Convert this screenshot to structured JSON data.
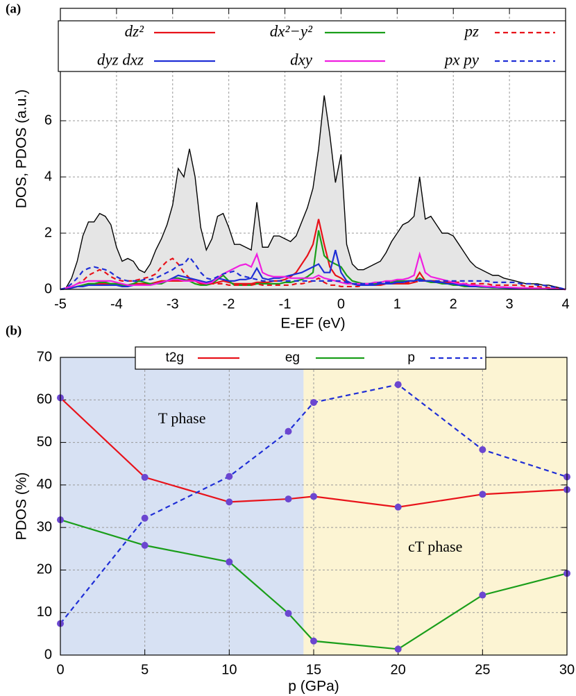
{
  "chart_data": [
    {
      "type": "line",
      "panel_label": "(a)",
      "xlabel": "E-EF (eV)",
      "ylabel": "DOS, PDOS (a.u.)",
      "xlim": [
        -5,
        4
      ],
      "xticks": [
        -5,
        -4,
        -3,
        -2,
        -1,
        0,
        1,
        2,
        3,
        4
      ],
      "ylim": [
        0,
        10
      ],
      "yticks": [
        0,
        2,
        4,
        6
      ],
      "grid": true,
      "x": [
        -5,
        -4.9,
        -4.8,
        -4.7,
        -4.6,
        -4.5,
        -4.4,
        -4.3,
        -4.2,
        -4.1,
        -4,
        -3.9,
        -3.8,
        -3.7,
        -3.6,
        -3.5,
        -3.4,
        -3.3,
        -3.2,
        -3.1,
        -3,
        -2.9,
        -2.8,
        -2.7,
        -2.6,
        -2.5,
        -2.4,
        -2.3,
        -2.2,
        -2.1,
        -2,
        -1.9,
        -1.8,
        -1.7,
        -1.6,
        -1.5,
        -1.4,
        -1.3,
        -1.2,
        -1.1,
        -1,
        -0.9,
        -0.8,
        -0.7,
        -0.6,
        -0.5,
        -0.4,
        -0.3,
        -0.2,
        -0.1,
        0,
        0.1,
        0.2,
        0.3,
        0.4,
        0.5,
        0.6,
        0.7,
        0.8,
        0.9,
        1,
        1.1,
        1.2,
        1.3,
        1.4,
        1.5,
        1.6,
        1.7,
        1.8,
        1.9,
        2,
        2.1,
        2.2,
        2.3,
        2.4,
        2.5,
        2.6,
        2.7,
        2.8,
        2.9,
        3,
        3.1,
        3.2,
        3.3,
        3.4,
        3.5,
        3.6,
        3.7,
        3.8,
        3.9,
        4
      ],
      "total": {
        "color": "#000000",
        "fill": "#e5e5e5",
        "values": [
          0,
          0.05,
          0.4,
          1.0,
          1.9,
          2.4,
          2.4,
          2.7,
          2.6,
          2.3,
          1.5,
          1.0,
          1.1,
          1.0,
          0.7,
          0.6,
          0.9,
          1.4,
          1.8,
          2.3,
          3.0,
          4.3,
          4.0,
          5.0,
          4.0,
          2.2,
          1.4,
          1.8,
          2.6,
          2.7,
          2.2,
          1.6,
          1.6,
          1.5,
          1.4,
          3.1,
          1.5,
          1.5,
          1.9,
          1.9,
          1.8,
          1.7,
          1.9,
          2.4,
          2.9,
          3.6,
          5.0,
          6.9,
          5.5,
          3.8,
          4.8,
          1.6,
          0.9,
          0.7,
          0.7,
          0.8,
          0.9,
          1.0,
          1.3,
          1.7,
          2.0,
          2.3,
          2.4,
          2.6,
          4.0,
          2.5,
          2.6,
          2.3,
          2.0,
          2.0,
          1.9,
          1.6,
          1.3,
          1.0,
          0.8,
          0.7,
          0.6,
          0.5,
          0.5,
          0.4,
          0.35,
          0.3,
          0.25,
          0.2,
          0.2,
          0.2,
          0.15,
          0.15,
          0.1,
          0.05,
          0
        ]
      },
      "series": [
        {
          "name": "dz²",
          "color": "#e8121a",
          "style": "solid",
          "values": [
            0,
            0.02,
            0.05,
            0.1,
            0.15,
            0.2,
            0.2,
            0.2,
            0.2,
            0.2,
            0.2,
            0.15,
            0.15,
            0.2,
            0.2,
            0.2,
            0.2,
            0.25,
            0.3,
            0.3,
            0.3,
            0.3,
            0.3,
            0.35,
            0.3,
            0.2,
            0.2,
            0.2,
            0.25,
            0.3,
            0.25,
            0.2,
            0.2,
            0.2,
            0.2,
            0.25,
            0.25,
            0.25,
            0.3,
            0.3,
            0.35,
            0.45,
            0.6,
            0.9,
            1.2,
            1.6,
            2.5,
            1.6,
            0.8,
            0.5,
            0.4,
            0.25,
            0.2,
            0.15,
            0.15,
            0.15,
            0.15,
            0.15,
            0.2,
            0.2,
            0.2,
            0.2,
            0.2,
            0.25,
            0.6,
            0.3,
            0.3,
            0.3,
            0.25,
            0.25,
            0.2,
            0.2,
            0.15,
            0.15,
            0.1,
            0.1,
            0.1,
            0.1,
            0.08,
            0.08,
            0.06,
            0.05,
            0.05,
            0.04,
            0.04,
            0.03,
            0.03,
            0.02,
            0.02,
            0.01,
            0
          ]
        },
        {
          "name": "dx²−y²",
          "color": "#1a9e1a",
          "style": "solid",
          "values": [
            0,
            0.02,
            0.05,
            0.1,
            0.15,
            0.2,
            0.2,
            0.25,
            0.25,
            0.2,
            0.2,
            0.15,
            0.15,
            0.2,
            0.3,
            0.25,
            0.2,
            0.2,
            0.2,
            0.3,
            0.4,
            0.4,
            0.35,
            0.3,
            0.2,
            0.15,
            0.15,
            0.2,
            0.35,
            0.5,
            0.3,
            0.15,
            0.15,
            0.15,
            0.15,
            0.2,
            0.2,
            0.2,
            0.2,
            0.2,
            0.25,
            0.25,
            0.3,
            0.35,
            0.45,
            0.6,
            2.1,
            1.2,
            1.0,
            0.9,
            0.8,
            0.5,
            0.3,
            0.25,
            0.2,
            0.2,
            0.2,
            0.2,
            0.2,
            0.25,
            0.3,
            0.3,
            0.3,
            0.3,
            0.4,
            0.3,
            0.25,
            0.25,
            0.2,
            0.2,
            0.15,
            0.15,
            0.1,
            0.1,
            0.1,
            0.08,
            0.08,
            0.06,
            0.06,
            0.05,
            0.04,
            0.04,
            0.03,
            0.03,
            0.02,
            0.02,
            0.02,
            0.01,
            0.01,
            0.01,
            0
          ]
        },
        {
          "name": "pz",
          "color": "#e8121a",
          "style": "dashed",
          "values": [
            0,
            0.05,
            0.1,
            0.2,
            0.3,
            0.5,
            0.6,
            0.7,
            0.6,
            0.45,
            0.35,
            0.3,
            0.3,
            0.3,
            0.35,
            0.4,
            0.45,
            0.55,
            0.8,
            1.0,
            1.1,
            0.9,
            0.6,
            0.4,
            0.3,
            0.25,
            0.2,
            0.2,
            0.2,
            0.2,
            0.15,
            0.15,
            0.15,
            0.15,
            0.15,
            0.2,
            0.15,
            0.15,
            0.15,
            0.15,
            0.15,
            0.15,
            0.2,
            0.2,
            0.25,
            0.3,
            0.4,
            0.25,
            0.15,
            0.15,
            0.1,
            0.1,
            0.1,
            0.1,
            0.15,
            0.15,
            0.15,
            0.15,
            0.2,
            0.2,
            0.2,
            0.25,
            0.25,
            0.25,
            0.3,
            0.3,
            0.3,
            0.3,
            0.25,
            0.25,
            0.25,
            0.25,
            0.2,
            0.2,
            0.2,
            0.2,
            0.2,
            0.15,
            0.15,
            0.15,
            0.15,
            0.15,
            0.15,
            0.1,
            0.1,
            0.1,
            0.08,
            0.06,
            0.04,
            0.02,
            0
          ]
        },
        {
          "name": "dyz dxz",
          "color": "#1f2ed6",
          "style": "solid",
          "values": [
            0,
            0.02,
            0.05,
            0.1,
            0.1,
            0.15,
            0.15,
            0.15,
            0.15,
            0.15,
            0.15,
            0.1,
            0.1,
            0.15,
            0.15,
            0.15,
            0.15,
            0.2,
            0.25,
            0.3,
            0.4,
            0.5,
            0.45,
            0.4,
            0.35,
            0.3,
            0.25,
            0.3,
            0.4,
            0.35,
            0.3,
            0.3,
            0.35,
            0.35,
            0.4,
            0.75,
            0.4,
            0.35,
            0.4,
            0.4,
            0.45,
            0.5,
            0.55,
            0.6,
            0.7,
            0.8,
            0.9,
            0.6,
            0.6,
            1.4,
            0.6,
            0.3,
            0.2,
            0.15,
            0.15,
            0.15,
            0.15,
            0.2,
            0.2,
            0.2,
            0.25,
            0.25,
            0.3,
            0.3,
            0.35,
            0.3,
            0.3,
            0.25,
            0.25,
            0.2,
            0.2,
            0.15,
            0.15,
            0.1,
            0.1,
            0.1,
            0.08,
            0.08,
            0.06,
            0.06,
            0.05,
            0.04,
            0.04,
            0.03,
            0.03,
            0.02,
            0.02,
            0.01,
            0.01,
            0.01,
            0
          ]
        },
        {
          "name": "dxy",
          "color": "#f01ee0",
          "style": "solid",
          "values": [
            0,
            0.05,
            0.1,
            0.2,
            0.25,
            0.3,
            0.3,
            0.3,
            0.3,
            0.3,
            0.25,
            0.2,
            0.15,
            0.15,
            0.15,
            0.15,
            0.15,
            0.2,
            0.25,
            0.3,
            0.35,
            0.35,
            0.3,
            0.3,
            0.3,
            0.25,
            0.2,
            0.25,
            0.4,
            0.55,
            0.65,
            0.75,
            0.85,
            0.9,
            0.8,
            1.25,
            0.6,
            0.5,
            0.45,
            0.45,
            0.45,
            0.4,
            0.4,
            0.4,
            0.4,
            0.4,
            0.5,
            0.4,
            0.35,
            0.3,
            0.25,
            0.2,
            0.2,
            0.2,
            0.2,
            0.2,
            0.25,
            0.25,
            0.3,
            0.3,
            0.35,
            0.35,
            0.4,
            0.5,
            1.25,
            0.6,
            0.45,
            0.4,
            0.35,
            0.3,
            0.25,
            0.2,
            0.2,
            0.15,
            0.15,
            0.12,
            0.1,
            0.1,
            0.08,
            0.08,
            0.07,
            0.06,
            0.05,
            0.05,
            0.04,
            0.04,
            0.03,
            0.02,
            0.02,
            0.01,
            0
          ]
        },
        {
          "name": "px py",
          "color": "#1f2ed6",
          "style": "dashed",
          "values": [
            0,
            0.05,
            0.2,
            0.4,
            0.65,
            0.75,
            0.8,
            0.75,
            0.7,
            0.6,
            0.45,
            0.35,
            0.3,
            0.3,
            0.3,
            0.35,
            0.35,
            0.4,
            0.5,
            0.6,
            0.7,
            0.85,
            0.9,
            1.15,
            0.9,
            0.6,
            0.4,
            0.35,
            0.45,
            0.55,
            0.6,
            0.65,
            0.5,
            0.45,
            0.4,
            0.35,
            0.3,
            0.3,
            0.3,
            0.3,
            0.3,
            0.3,
            0.3,
            0.3,
            0.3,
            0.3,
            0.3,
            0.3,
            0.3,
            0.3,
            0.3,
            0.25,
            0.2,
            0.2,
            0.2,
            0.2,
            0.2,
            0.25,
            0.25,
            0.25,
            0.25,
            0.25,
            0.3,
            0.3,
            0.3,
            0.3,
            0.3,
            0.3,
            0.3,
            0.3,
            0.3,
            0.3,
            0.3,
            0.3,
            0.3,
            0.3,
            0.3,
            0.25,
            0.25,
            0.25,
            0.25,
            0.25,
            0.2,
            0.2,
            0.2,
            0.15,
            0.15,
            0.1,
            0.08,
            0.05,
            0
          ]
        }
      ]
    },
    {
      "type": "line",
      "panel_label": "(b)",
      "xlabel": "p (GPa)",
      "ylabel": "PDOS (%)",
      "xlim": [
        0,
        30
      ],
      "xticks": [
        0,
        5,
        10,
        15,
        20,
        25,
        30
      ],
      "ylim": [
        0,
        70
      ],
      "yticks": [
        0,
        10,
        20,
        30,
        40,
        50,
        60,
        70
      ],
      "grid": true,
      "marker_color": "#6b46d0",
      "regions": [
        {
          "label": "T phase",
          "range": [
            0,
            14.4
          ],
          "color": "#d7e1f3"
        },
        {
          "label": "cT phase",
          "range": [
            14.4,
            30
          ],
          "color": "#fcf4d3"
        }
      ],
      "x": [
        0,
        5,
        10,
        13.5,
        15,
        20,
        25,
        30
      ],
      "series": [
        {
          "name": "t2g",
          "color": "#e8121a",
          "style": "solid",
          "values": [
            60.5,
            41.8,
            36,
            36.7,
            37.3,
            34.8,
            37.8,
            38.9
          ]
        },
        {
          "name": "eg",
          "color": "#1a9e1a",
          "style": "solid",
          "values": [
            31.8,
            25.8,
            21.9,
            9.8,
            3.3,
            1.4,
            14.1,
            19.2
          ]
        },
        {
          "name": "p",
          "color": "#1f2ed6",
          "style": "dashed",
          "values": [
            7.4,
            32.2,
            42,
            52.6,
            59.4,
            63.6,
            48.3,
            41.9
          ]
        }
      ]
    }
  ]
}
